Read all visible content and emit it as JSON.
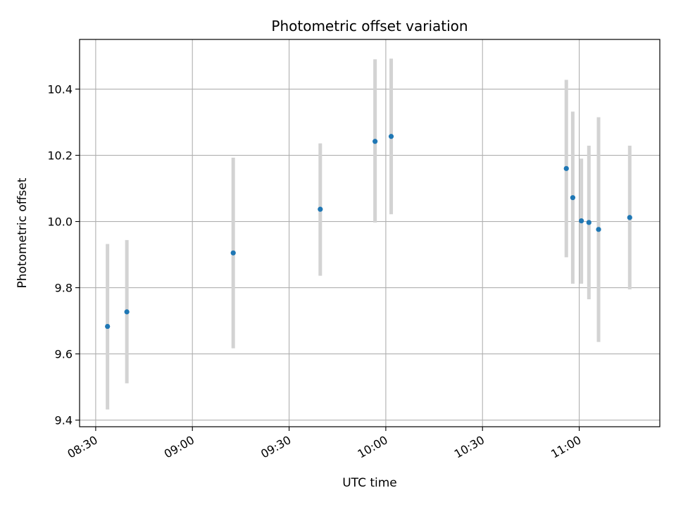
{
  "chart_data": {
    "type": "scatter",
    "title": "Photometric offset variation",
    "xlabel": "UTC time",
    "ylabel": "Photometric offset",
    "x_ticks": [
      "08:30",
      "09:00",
      "09:30",
      "10:00",
      "10:30",
      "11:00"
    ],
    "y_ticks": [
      "9.4",
      "9.6",
      "9.8",
      "10.0",
      "10.2",
      "10.4"
    ],
    "x_range": [
      "08:25",
      "11:25"
    ],
    "ylim": [
      9.38,
      10.55
    ],
    "grid": true,
    "colors": {
      "point": "#1f77b4",
      "errorbar": "#d3d3d3",
      "grid": "#b0b0b0"
    },
    "points": [
      {
        "time": "08:33:40",
        "value": 9.683,
        "low": 9.432,
        "high": 9.932
      },
      {
        "time": "08:39:40",
        "value": 9.727,
        "low": 9.511,
        "high": 9.944
      },
      {
        "time": "09:12:40",
        "value": 9.905,
        "low": 9.617,
        "high": 10.193
      },
      {
        "time": "09:39:40",
        "value": 10.037,
        "low": 9.836,
        "high": 10.236
      },
      {
        "time": "09:56:40",
        "value": 10.242,
        "low": 9.997,
        "high": 10.49
      },
      {
        "time": "10:01:40",
        "value": 10.257,
        "low": 10.022,
        "high": 10.492
      },
      {
        "time": "10:56:00",
        "value": 10.16,
        "low": 9.892,
        "high": 10.428
      },
      {
        "time": "10:58:00",
        "value": 10.072,
        "low": 9.812,
        "high": 10.332
      },
      {
        "time": "11:00:40",
        "value": 10.002,
        "low": 9.812,
        "high": 10.19
      },
      {
        "time": "11:03:00",
        "value": 9.997,
        "low": 9.765,
        "high": 10.229
      },
      {
        "time": "11:06:00",
        "value": 9.976,
        "low": 9.636,
        "high": 10.315
      },
      {
        "time": "11:15:40",
        "value": 10.012,
        "low": 9.795,
        "high": 10.229
      }
    ]
  }
}
